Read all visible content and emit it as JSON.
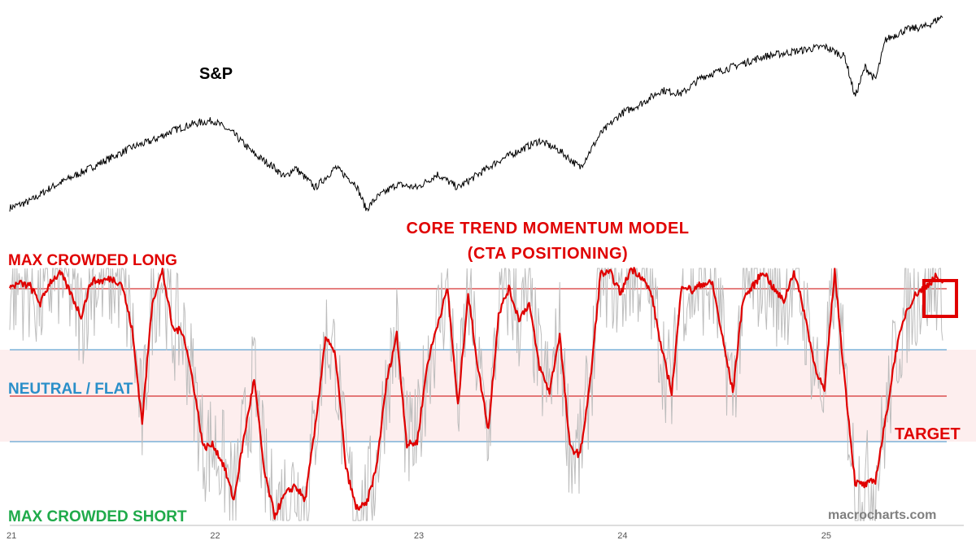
{
  "labels": {
    "sp": "S&P",
    "title": "CORE TREND MOMENTUM MODEL",
    "subtitle": "(CTA POSITIONING)",
    "max_long": "MAX CROWDED LONG",
    "neutral": "NEUTRAL / FLAT",
    "max_short": "MAX CROWDED SHORT",
    "target": "TARGET",
    "watermark": "macrocharts.com"
  },
  "colors": {
    "sp_line": "#000000",
    "model_line": "#e00000",
    "raw_signal": "#bdbdbd",
    "threshold_line": "#cc0000",
    "band_line": "#3a8fc8",
    "neutral_band_fill": "#fdeeee",
    "label_red": "#e00000",
    "label_blue": "#2a8fc9",
    "label_green": "#1faa4a",
    "label_black": "#000000",
    "target_box": "#e00000"
  },
  "chart_data": [
    {
      "type": "line",
      "name": "S&P",
      "x_range": [
        2021.0,
        2025.6
      ],
      "x": [
        2021.0,
        2021.1,
        2021.2,
        2021.3,
        2021.4,
        2021.5,
        2021.6,
        2021.7,
        2021.8,
        2021.9,
        2022.0,
        2022.1,
        2022.2,
        2022.3,
        2022.35,
        2022.4,
        2022.5,
        2022.6,
        2022.7,
        2022.75,
        2022.8,
        2022.9,
        2023.0,
        2023.1,
        2023.2,
        2023.3,
        2023.4,
        2023.5,
        2023.6,
        2023.7,
        2023.8,
        2023.9,
        2024.0,
        2024.1,
        2024.2,
        2024.3,
        2024.4,
        2024.5,
        2024.6,
        2024.7,
        2024.8,
        2024.9,
        2025.0,
        2025.1,
        2025.15,
        2025.2,
        2025.25,
        2025.3,
        2025.4,
        2025.5,
        2025.58
      ],
      "values": [
        0.06,
        0.1,
        0.18,
        0.24,
        0.3,
        0.36,
        0.42,
        0.46,
        0.52,
        0.56,
        0.58,
        0.5,
        0.38,
        0.3,
        0.24,
        0.3,
        0.18,
        0.3,
        0.2,
        0.05,
        0.12,
        0.2,
        0.18,
        0.26,
        0.18,
        0.26,
        0.34,
        0.4,
        0.46,
        0.4,
        0.3,
        0.5,
        0.62,
        0.68,
        0.76,
        0.74,
        0.84,
        0.88,
        0.92,
        0.96,
        0.98,
        1.0,
        1.02,
        0.96,
        0.72,
        0.9,
        0.82,
        1.06,
        1.12,
        1.14,
        1.2
      ],
      "ylim": [
        0.0,
        1.2
      ]
    },
    {
      "type": "line",
      "name": "CORE TREND MOMENTUM MODEL",
      "x_range": [
        2021.0,
        2025.6
      ],
      "x": [
        2021.0,
        2021.05,
        2021.1,
        2021.15,
        2021.2,
        2021.25,
        2021.3,
        2021.35,
        2021.4,
        2021.45,
        2021.5,
        2021.55,
        2021.6,
        2021.65,
        2021.7,
        2021.75,
        2021.8,
        2021.85,
        2021.9,
        2021.95,
        2022.0,
        2022.05,
        2022.1,
        2022.15,
        2022.2,
        2022.25,
        2022.3,
        2022.35,
        2022.4,
        2022.45,
        2022.5,
        2022.55,
        2022.6,
        2022.65,
        2022.7,
        2022.75,
        2022.8,
        2022.85,
        2022.9,
        2022.95,
        2023.0,
        2023.05,
        2023.1,
        2023.15,
        2023.2,
        2023.25,
        2023.3,
        2023.35,
        2023.4,
        2023.45,
        2023.5,
        2023.55,
        2023.6,
        2023.65,
        2023.7,
        2023.75,
        2023.8,
        2023.85,
        2023.9,
        2023.95,
        2024.0,
        2024.05,
        2024.1,
        2024.15,
        2024.2,
        2024.25,
        2024.3,
        2024.35,
        2024.4,
        2024.45,
        2024.5,
        2024.55,
        2024.6,
        2024.65,
        2024.7,
        2024.75,
        2024.8,
        2024.85,
        2024.9,
        2024.95,
        2025.0,
        2025.05,
        2025.1,
        2025.15,
        2025.2,
        2025.25,
        2025.3,
        2025.35,
        2025.4,
        2025.45,
        2025.5,
        2025.55,
        2025.58
      ],
      "values": [
        85,
        88,
        86,
        72,
        90,
        96,
        80,
        62,
        90,
        90,
        92,
        88,
        52,
        -22,
        74,
        98,
        52,
        50,
        10,
        -42,
        -40,
        -56,
        -84,
        -34,
        12,
        -62,
        -96,
        -80,
        -72,
        -84,
        -26,
        46,
        30,
        -58,
        -90,
        -88,
        -58,
        10,
        48,
        -40,
        -38,
        24,
        56,
        84,
        -10,
        80,
        20,
        -28,
        64,
        84,
        60,
        72,
        22,
        2,
        48,
        -42,
        -48,
        10,
        96,
        96,
        80,
        100,
        94,
        80,
        36,
        2,
        88,
        82,
        88,
        88,
        44,
        2,
        76,
        86,
        98,
        84,
        74,
        98,
        66,
        24,
        2,
        98,
        10,
        -70,
        -72,
        -68,
        -20,
        34,
        66,
        80,
        86,
        94,
        86
      ],
      "ylim": [
        -100,
        100
      ]
    }
  ]
}
